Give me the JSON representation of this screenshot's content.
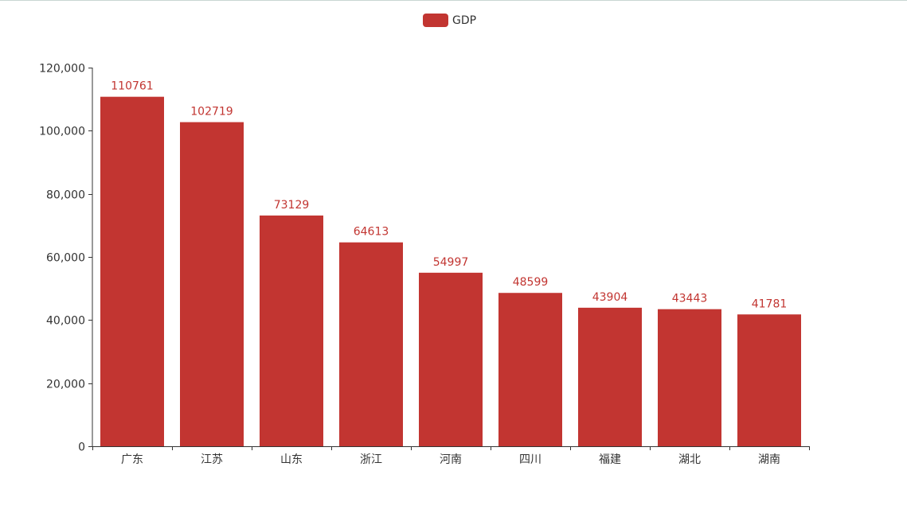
{
  "chart_data": {
    "type": "bar",
    "legend": {
      "label": "GDP",
      "placement": "top-center"
    },
    "categories": [
      "广东",
      "江苏",
      "山东",
      "浙江",
      "河南",
      "四川",
      "福建",
      "湖北",
      "湖南"
    ],
    "series": [
      {
        "name": "GDP",
        "values": [
          110761,
          102719,
          73129,
          64613,
          54997,
          48599,
          43904,
          43443,
          41781
        ],
        "color": "#c23531"
      }
    ],
    "yaxis": {
      "min": 0,
      "max": 120000,
      "ticks": [
        "0",
        "20,000",
        "40,000",
        "60,000",
        "80,000",
        "100,000",
        "120,000"
      ]
    },
    "grid": false,
    "show_value_labels": true
  }
}
